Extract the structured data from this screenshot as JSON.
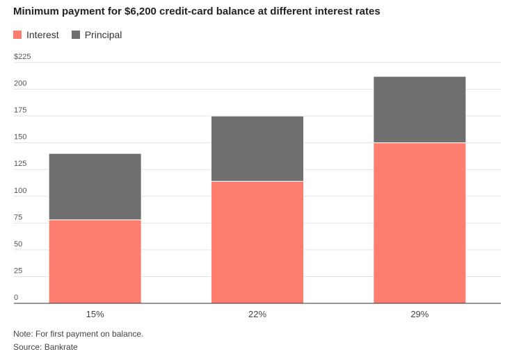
{
  "chart_data": {
    "type": "bar",
    "stacked": true,
    "title": "Minimum payment for $6,200 credit-card balance at different interest rates",
    "categories": [
      "15%",
      "22%",
      "29%"
    ],
    "series": [
      {
        "name": "Interest",
        "color": "#ff7d6e",
        "values": [
          78,
          114,
          150
        ]
      },
      {
        "name": "Principal",
        "color": "#6f6f6f",
        "values": [
          62,
          61,
          62
        ]
      }
    ],
    "ylim": [
      0,
      225
    ],
    "yticks": [
      0,
      25,
      50,
      75,
      100,
      125,
      150,
      175,
      200,
      225
    ],
    "ytick_labels": [
      "0",
      "25",
      "50",
      "75",
      "100",
      "125",
      "150",
      "175",
      "200",
      "$225"
    ],
    "grid": true,
    "legend_position": "top-left",
    "note": "Note: For first payment on balance.",
    "source": "Source: Bankrate"
  }
}
